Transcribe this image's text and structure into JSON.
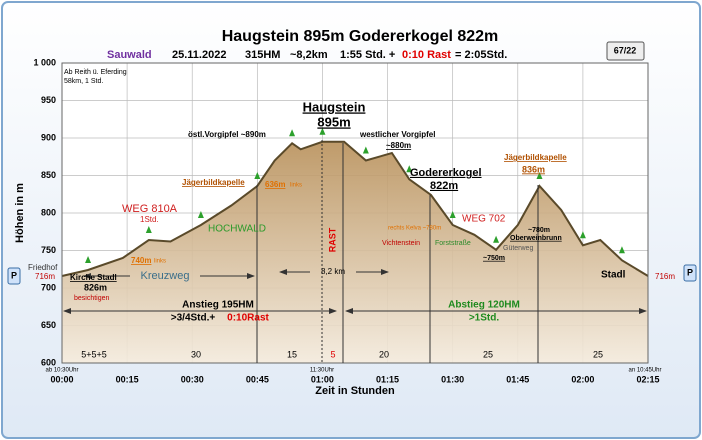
{
  "chart_data": {
    "type": "area",
    "title": "Haugstein 895m Godererkogel 822m",
    "subtitle": [
      "Sauwald",
      "25.11.2022",
      "315HM",
      "~8,2km",
      "1:55 Std. +",
      "0:10 Rast",
      "=  2:05Std."
    ],
    "badge": "67/22",
    "y_label": "Höhen in m",
    "x_label": "Zeit in Stunden",
    "x": [
      0,
      6,
      14,
      20,
      25,
      32,
      39,
      45,
      49,
      53,
      55,
      60,
      65,
      70,
      76,
      80,
      85,
      90,
      95,
      100,
      105,
      110,
      115,
      120,
      124,
      129,
      135
    ],
    "values": [
      716,
      724,
      740,
      764,
      762,
      784,
      810,
      836,
      870,
      893,
      885,
      895,
      895,
      870,
      880,
      845,
      824,
      784,
      771,
      751,
      784,
      836,
      804,
      757,
      764,
      737,
      716
    ],
    "color": "#5a4a2a",
    "fill": "#c9ab7e",
    "xlim": [
      0,
      135
    ],
    "ylim": [
      600,
      1000
    ],
    "xticks": [
      {
        "value": 0,
        "label": "00:00"
      },
      {
        "value": 15,
        "label": "00:15"
      },
      {
        "value": 30,
        "label": "00:30"
      },
      {
        "value": 45,
        "label": "00:45"
      },
      {
        "value": 60,
        "label": "01:00"
      },
      {
        "value": 75,
        "label": "01:15"
      },
      {
        "value": 90,
        "label": "01:30"
      },
      {
        "value": 105,
        "label": "01:45"
      },
      {
        "value": 120,
        "label": "02:00"
      },
      {
        "value": 135,
        "label": "02:15"
      }
    ],
    "yticks": [
      600,
      650,
      700,
      750,
      800,
      850,
      900,
      950,
      {
        "value": 1000,
        "label": "1 000"
      }
    ],
    "grid": true,
    "annotations": [
      "Ab Reith ü. Eferding",
      "58km, 1 Std.",
      "Friedhof",
      "716m",
      "Kirche Stadl",
      "826m",
      "besichtigen",
      "WEG 810A",
      "1Std.",
      "740m",
      "links",
      "Kreuzweg",
      "HOCHWALD",
      "Jägerbildkapelle",
      "636m",
      "links",
      "östl.Vorgipfel ~890m",
      "Haugstein",
      "895m",
      "RAST",
      "westlicher Vorgipfel",
      "~880m",
      "Godererkogel",
      "822m",
      "rechts Kelva ~780m",
      "Vichtenstein",
      "WEG 702",
      "Forststraße",
      "~750m",
      "Güterweg",
      "Jägerbildkapelle",
      "836m",
      "~780m",
      "Oberweinbrunn",
      "Stadl",
      "716m",
      "8,2 km",
      "Anstieg 195HM",
      ">3/4Std.+",
      "0:10Rast",
      "Abstieg 120HM",
      ">1Std.",
      "5+5+5",
      "30",
      "15",
      "5",
      "20",
      "25",
      "25",
      "ab 10:30Uhr",
      "11:30Uhr",
      "an 10:45Uhr",
      "P",
      "P"
    ]
  }
}
